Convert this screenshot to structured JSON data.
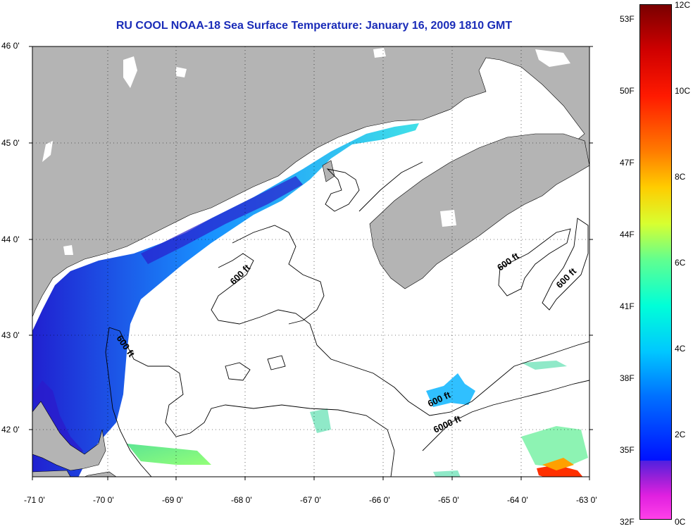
{
  "title": "RU COOL  NOAA-18  Sea Surface Temperature:  January 16, 2009 1810 GMT",
  "lat_ticks": [
    "46 0'",
    "45 0'",
    "44 0'",
    "43 0'",
    "42 0'"
  ],
  "lon_ticks": [
    "-71 0'",
    "-70 0'",
    "-69 0'",
    "-68 0'",
    "-67 0'",
    "-66 0'",
    "-65 0'",
    "-64 0'",
    "-63 0'"
  ],
  "contour_labels": [
    "600 ft",
    "600 ft",
    "600 ft",
    "600 ft",
    "600 ft",
    "6000 ft"
  ],
  "colorbar": {
    "fahrenheit": [
      "53F",
      "50F",
      "47F",
      "44F",
      "41F",
      "38F",
      "35F",
      "32F"
    ],
    "celsius": [
      "12C",
      "10C",
      "8C",
      "6C",
      "4C",
      "2C",
      "0C"
    ]
  },
  "colors": {
    "land": "#b4b4b4",
    "ocean_no_data": "#ffffff",
    "title": "#1a2cb8",
    "warm_sst": "#ff2000",
    "cold_sst": "#0030ff"
  }
}
